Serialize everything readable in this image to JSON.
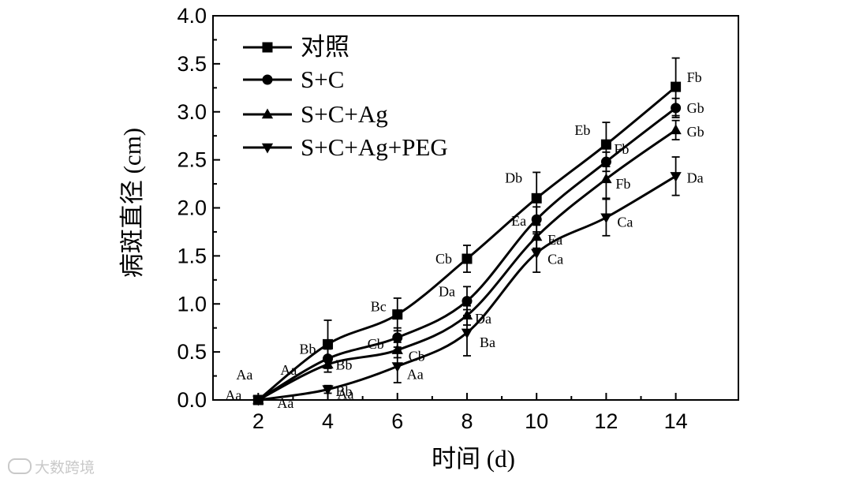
{
  "chart_data": {
    "type": "line",
    "xlabel": "时间 (d)",
    "ylabel": "病斑直径 (cm)",
    "x": [
      2,
      4,
      6,
      8,
      10,
      12,
      14
    ],
    "xlim": [
      0.7,
      15.8
    ],
    "ylim": [
      0,
      4.0
    ],
    "xticks": [
      2,
      4,
      6,
      8,
      10,
      12,
      14
    ],
    "yticks": [
      "0.0",
      "0.5",
      "1.0",
      "1.5",
      "2.0",
      "2.5",
      "3.0",
      "3.5",
      "4.0"
    ],
    "legend_position": "top-left",
    "grid": false,
    "series": [
      {
        "name": "对照",
        "marker": "square",
        "values": [
          0.0,
          0.58,
          0.89,
          1.47,
          2.1,
          2.66,
          3.26
        ],
        "errors": [
          0.02,
          0.25,
          0.17,
          0.14,
          0.27,
          0.23,
          0.3
        ],
        "labels": [
          "Aa",
          "Bb",
          "Bc",
          "Cb",
          "Db",
          "Eb",
          "Fb"
        ]
      },
      {
        "name": "S+C",
        "marker": "circle",
        "values": [
          0.0,
          0.43,
          0.65,
          1.03,
          1.88,
          2.48,
          3.04
        ],
        "errors": [
          0.02,
          0.1,
          0.1,
          0.15,
          0.13,
          0.1,
          0.1
        ],
        "labels": [
          "Aa",
          "Bb",
          "Cb",
          "Da",
          "Ea",
          "Fb",
          "Gb"
        ]
      },
      {
        "name": "S+C+Ag",
        "marker": "triangle-up",
        "values": [
          0.0,
          0.37,
          0.52,
          0.88,
          1.7,
          2.3,
          2.81
        ],
        "errors": [
          0.02,
          0.08,
          0.08,
          0.1,
          0.12,
          0.2,
          0.1
        ],
        "labels": [
          "Aa",
          "Bb",
          "Cb",
          "Da",
          "Ea",
          "Fb",
          "Gb"
        ]
      },
      {
        "name": "S+C+Ag+PEG",
        "marker": "triangle-down",
        "values": [
          0.0,
          0.11,
          0.35,
          0.7,
          1.53,
          1.9,
          2.33
        ],
        "errors": [
          0.02,
          0.04,
          0.17,
          0.24,
          0.2,
          0.19,
          0.2
        ],
        "labels": [
          "Aa",
          "Aa",
          "Aa",
          "Ba",
          "Ca",
          "Ca",
          "Da"
        ]
      }
    ]
  },
  "watermark": {
    "text": "大数跨境",
    "icon": "infinity-logo-icon"
  }
}
